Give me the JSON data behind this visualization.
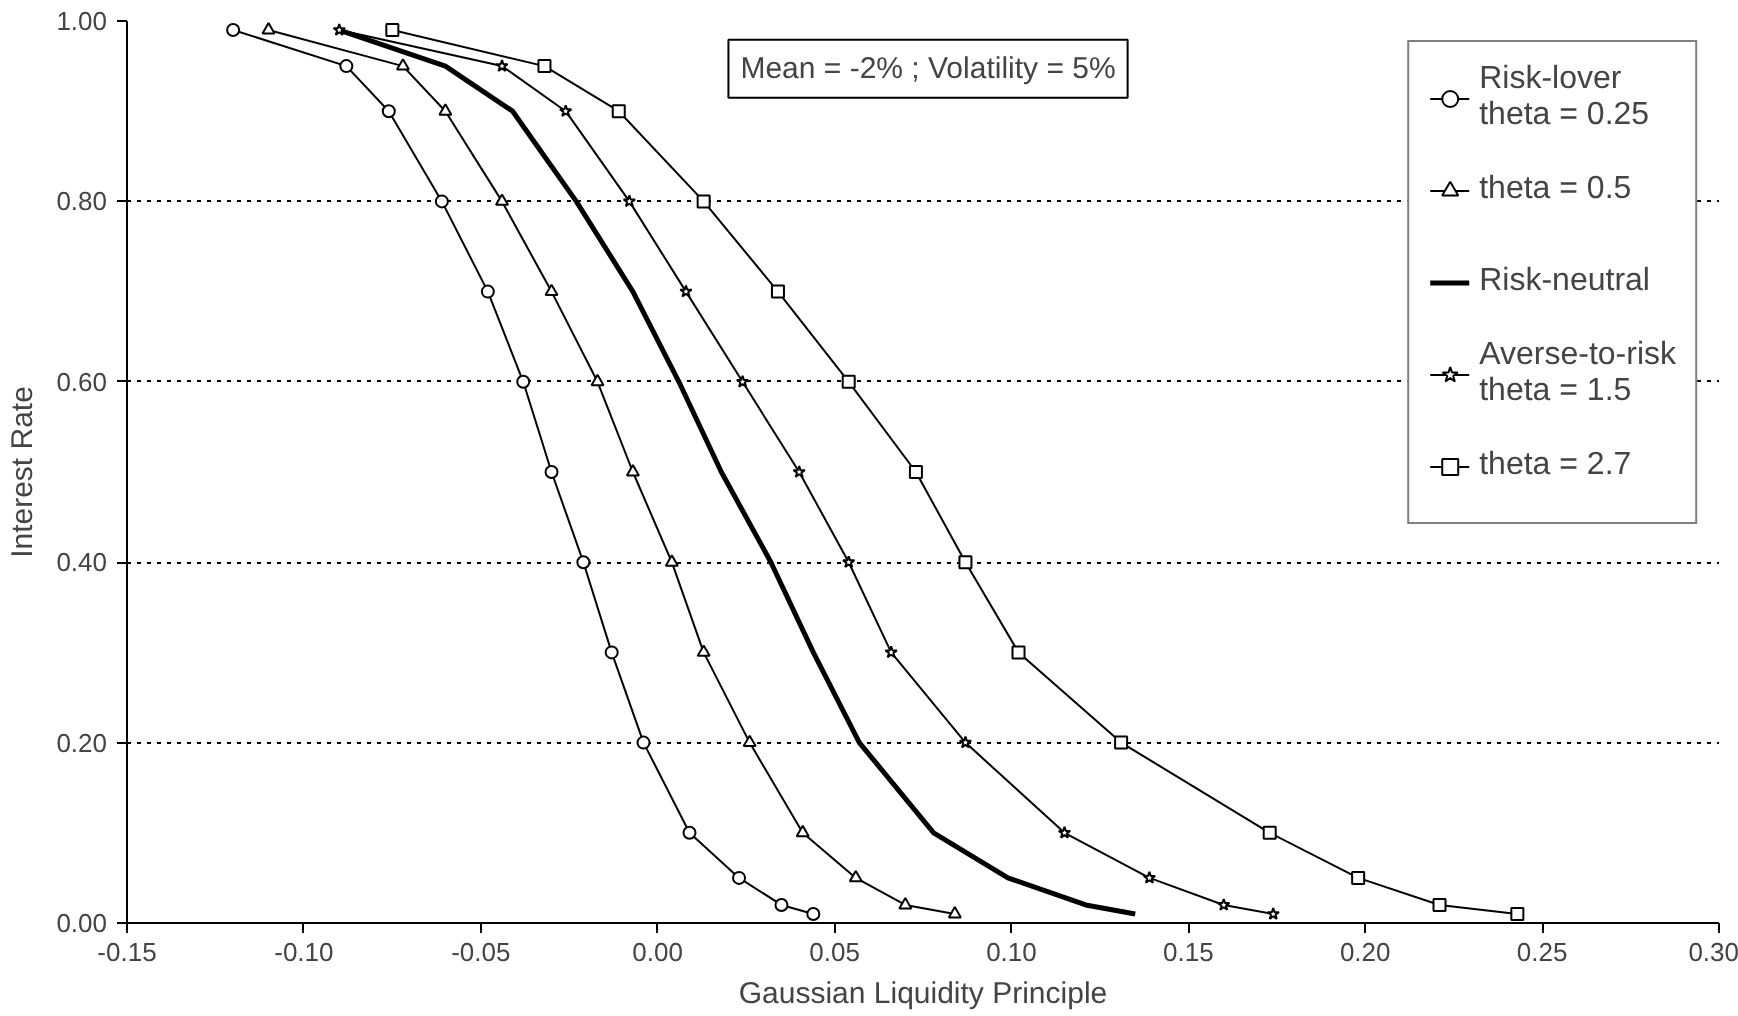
{
  "chart_data": {
    "type": "line",
    "xlabel": "Gaussian Liquidity Principle",
    "ylabel": "Interest Rate",
    "annotations": [
      "Mean = -2% ; Volatility = 5%"
    ],
    "xlim": [
      -0.15,
      0.3
    ],
    "ylim": [
      0,
      1
    ],
    "xticks": [
      {
        "value": -0.15,
        "label": "-0.15"
      },
      {
        "value": -0.1,
        "label": "-0.10"
      },
      {
        "value": -0.05,
        "label": "-0.05"
      },
      {
        "value": 0,
        "label": "0.00"
      },
      {
        "value": 0.05,
        "label": "0.05"
      },
      {
        "value": 0.1,
        "label": "0.10"
      },
      {
        "value": 0.15,
        "label": "0.15"
      },
      {
        "value": 0.2,
        "label": "0.20"
      },
      {
        "value": 0.25,
        "label": "0.25"
      },
      {
        "value": 0.3,
        "label": "0.30"
      }
    ],
    "yticks": [
      {
        "value": 0,
        "label": "0.00"
      },
      {
        "value": 0.2,
        "label": "0.20"
      },
      {
        "value": 0.4,
        "label": "0.40"
      },
      {
        "value": 0.6,
        "label": "0.60"
      },
      {
        "value": 0.8,
        "label": "0.80"
      },
      {
        "value": 1,
        "label": "1.00"
      }
    ],
    "grid": "y",
    "legend": "top right",
    "line_style": "solid",
    "series": [
      {
        "name": "Risk-lover\ntheta = 0.25",
        "color": "#000000",
        "marker": "circle",
        "x": [
          -0.12,
          -0.088,
          -0.076,
          -0.061,
          -0.048,
          -0.038,
          -0.03,
          -0.021,
          -0.013,
          -0.004,
          0.009,
          0.023,
          0.035,
          0.044
        ],
        "values": [
          0.99,
          0.95,
          0.9,
          0.8,
          0.7,
          0.6,
          0.5,
          0.4,
          0.3,
          0.2,
          0.1,
          0.05,
          0.02,
          0.01
        ]
      },
      {
        "name": "theta = 0.5",
        "color": "#000000",
        "marker": "triangle",
        "x": [
          -0.11,
          -0.072,
          -0.06,
          -0.044,
          -0.03,
          -0.017,
          -0.007,
          0.004,
          0.013,
          0.026,
          0.041,
          0.056,
          0.07,
          0.084
        ],
        "values": [
          0.99,
          0.95,
          0.9,
          0.8,
          0.7,
          0.6,
          0.5,
          0.4,
          0.3,
          0.2,
          0.1,
          0.05,
          0.02,
          0.01
        ]
      },
      {
        "name": "Risk-neutral",
        "color": "#000000",
        "marker": "none",
        "x": [
          -0.09,
          -0.06,
          -0.041,
          -0.023,
          -0.007,
          0.006,
          0.018,
          0.032,
          0.044,
          0.057,
          0.078,
          0.099,
          0.121,
          0.135
        ],
        "values": [
          0.99,
          0.95,
          0.9,
          0.8,
          0.7,
          0.6,
          0.5,
          0.4,
          0.3,
          0.2,
          0.1,
          0.05,
          0.02,
          0.01
        ]
      },
      {
        "name": "Averse-to-risk\ntheta = 1.5",
        "color": "#000000",
        "marker": "star",
        "x": [
          -0.09,
          -0.044,
          -0.026,
          -0.008,
          0.008,
          0.024,
          0.04,
          0.054,
          0.066,
          0.087,
          0.115,
          0.139,
          0.16,
          0.174
        ],
        "values": [
          0.99,
          0.95,
          0.9,
          0.8,
          0.7,
          0.6,
          0.5,
          0.4,
          0.3,
          0.2,
          0.1,
          0.05,
          0.02,
          0.01
        ]
      },
      {
        "name": "theta = 2.7",
        "color": "#000000",
        "marker": "square",
        "x": [
          -0.075,
          -0.032,
          -0.011,
          0.013,
          0.034,
          0.054,
          0.073,
          0.087,
          0.102,
          0.131,
          0.173,
          0.198,
          0.221,
          0.243
        ],
        "values": [
          0.99,
          0.95,
          0.9,
          0.8,
          0.7,
          0.6,
          0.5,
          0.4,
          0.3,
          0.2,
          0.1,
          0.05,
          0.02,
          0.01
        ]
      }
    ]
  }
}
